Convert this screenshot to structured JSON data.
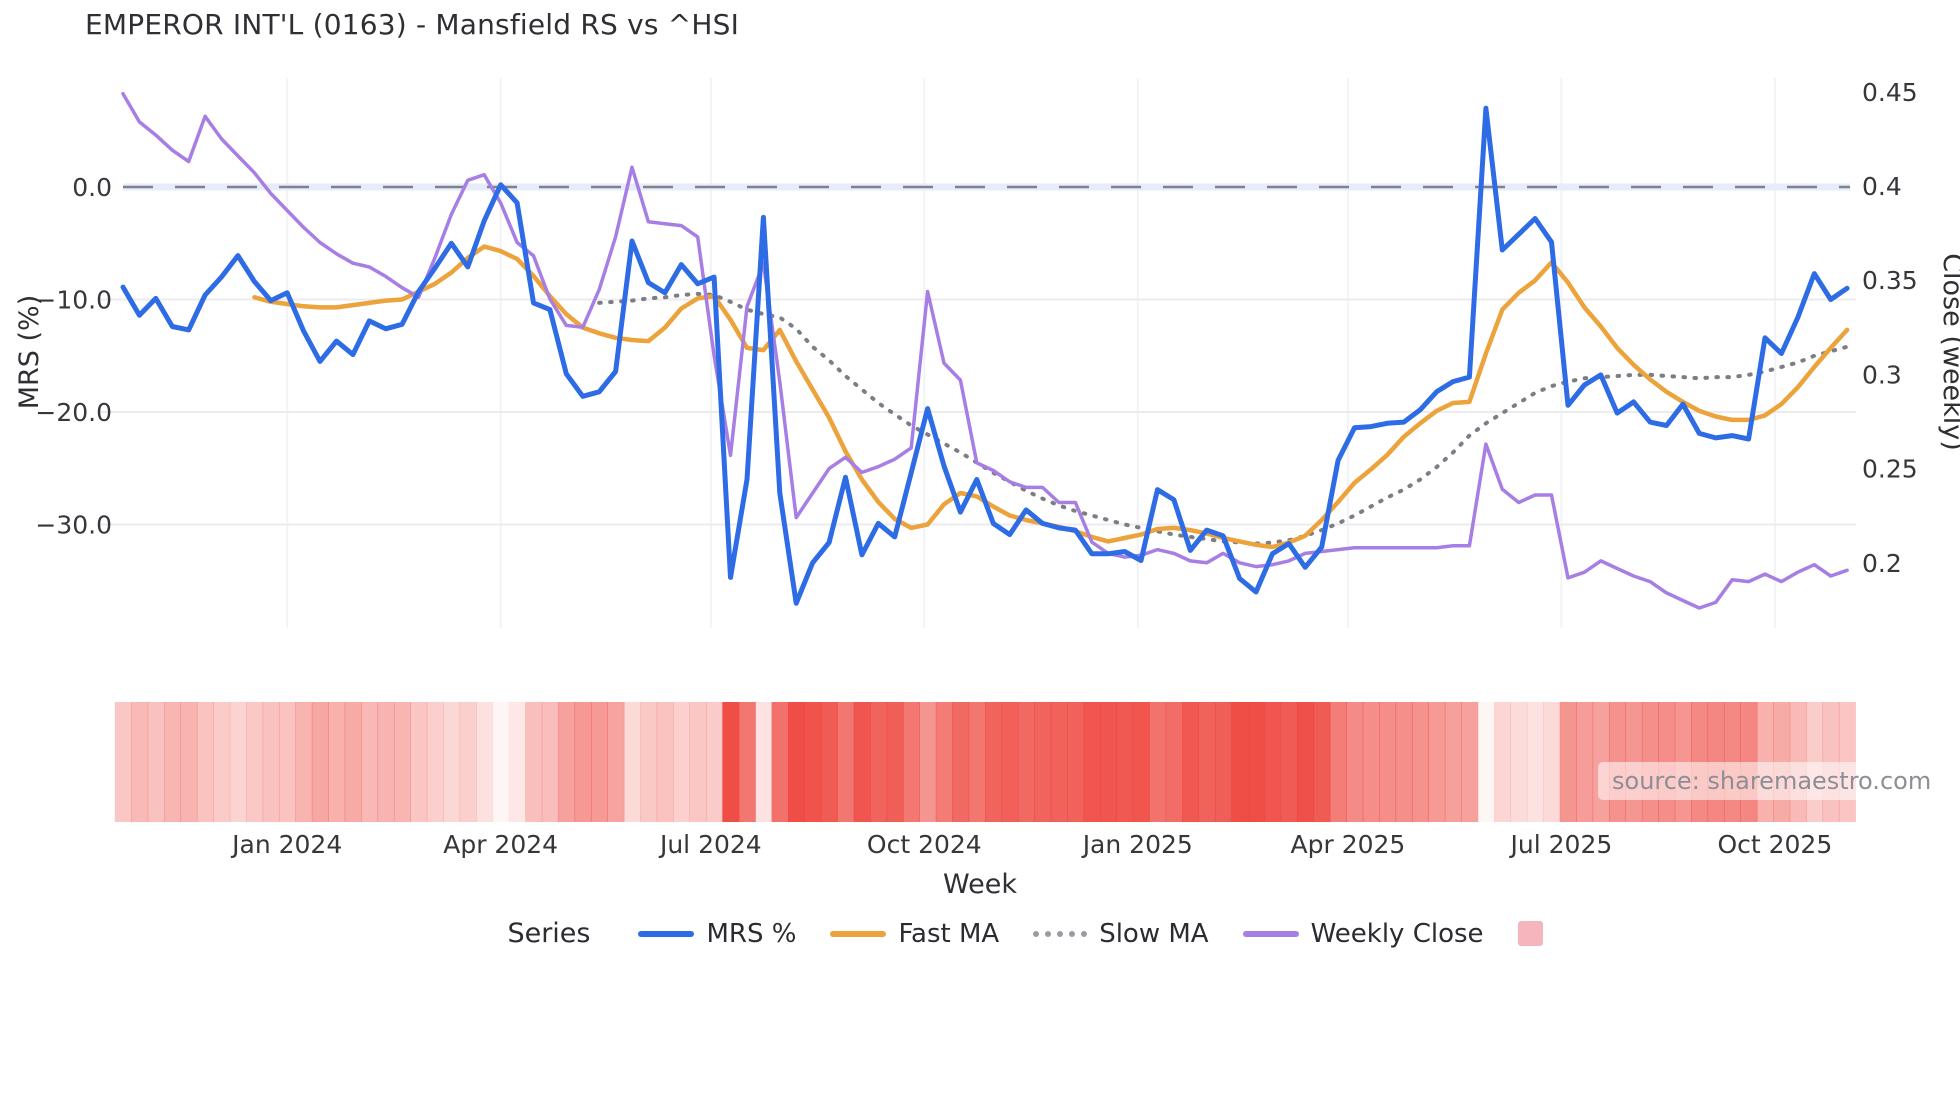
{
  "title": "EMPEROR INT'L (0163) - Mansfield RS vs ^HSI",
  "source_label": "source: sharemaestro.com",
  "axes": {
    "left": {
      "title": "MRS (%)",
      "ticks": [
        {
          "label": "0.0",
          "v": 0
        },
        {
          "label": "−10.0",
          "v": -10
        },
        {
          "label": "−20.0",
          "v": -20
        },
        {
          "label": "−30.0",
          "v": -30
        }
      ]
    },
    "right": {
      "title": "Close (weekly)",
      "ticks": [
        {
          "label": "0.45",
          "v": 0.45
        },
        {
          "label": "0.4",
          "v": 0.4
        },
        {
          "label": "0.35",
          "v": 0.35
        },
        {
          "label": "0.3",
          "v": 0.3
        },
        {
          "label": "0.25",
          "v": 0.25
        },
        {
          "label": "0.2",
          "v": 0.2
        }
      ]
    },
    "x": {
      "title": "Week",
      "ticks": [
        {
          "label": "Jan 2024",
          "week": 10.0
        },
        {
          "label": "Apr 2024",
          "week": 23.0
        },
        {
          "label": "Jul 2024",
          "week": 35.8
        },
        {
          "label": "Oct 2024",
          "week": 48.8
        },
        {
          "label": "Jan 2025",
          "week": 61.8
        },
        {
          "label": "Apr 2025",
          "week": 74.6
        },
        {
          "label": "Jul 2025",
          "week": 87.6
        },
        {
          "label": "Oct 2025",
          "week": 100.6
        }
      ]
    }
  },
  "legend": {
    "title": "Series",
    "items": [
      {
        "label": "MRS %",
        "swatch": "line",
        "color": "#2e6ce6"
      },
      {
        "label": "Fast MA",
        "swatch": "line",
        "color": "#eca33c"
      },
      {
        "label": "Slow MA",
        "swatch": "dotted",
        "color": "#989ba3"
      },
      {
        "label": "Weekly Close",
        "swatch": "line",
        "color": "#a77ee3"
      },
      {
        "label": "",
        "swatch": "square",
        "color": "#f4b6bc"
      }
    ]
  },
  "colors": {
    "grid": "#ebebf0",
    "grid_vertical": "#f3f3f7",
    "zero_dash": "#7d828e",
    "zero_band": "#e6ecf9",
    "text_dark": "#2f2f34",
    "text_tick": "#36363b",
    "heat_red": "#ee443c",
    "legend_pink": "#f4b6bc"
  },
  "chart_data": {
    "type": "line",
    "title": "EMPEROR INT'L (0163) - Mansfield RS vs ^HSI",
    "xlabel": "Week",
    "ylabel_left": "MRS (%)",
    "ylabel_right": "Close (weekly)",
    "x_unit": "weekly index, late Oct 2023 to Nov 2025",
    "n_weeks": 106,
    "zero_reference_line": 0,
    "left_ylim": [
      -38.9,
      10.0
    ],
    "right_ylim": [
      0.167,
      0.459
    ],
    "grid": "horizontal",
    "legend_position": "bottom",
    "series": [
      {
        "name": "MRS %",
        "axis": "left",
        "color": "#2e6ce6",
        "style": "solid",
        "width": 5,
        "values": [
          -8.9,
          -11.4,
          -9.9,
          -12.4,
          -12.7,
          -9.6,
          -8.0,
          -6.1,
          -8.4,
          -10.1,
          -9.4,
          -12.8,
          -15.5,
          -13.7,
          -14.9,
          -11.9,
          -12.6,
          -12.2,
          -9.3,
          -7.2,
          -5.0,
          -7.1,
          -3.0,
          0.2,
          -1.4,
          -10.3,
          -10.9,
          -16.6,
          -18.6,
          -18.2,
          -16.4,
          -4.8,
          -8.5,
          -9.4,
          -6.9,
          -8.6,
          -8.0,
          -34.7,
          -26.0,
          -2.7,
          -27.2,
          -37.0,
          -33.4,
          -31.6,
          -25.8,
          -32.7,
          -29.9,
          -31.1,
          -25.4,
          -19.7,
          -24.8,
          -28.9,
          -26.0,
          -29.9,
          -30.9,
          -28.7,
          -29.9,
          -30.3,
          -30.5,
          -32.6,
          -32.6,
          -32.4,
          -33.2,
          -26.9,
          -27.8,
          -32.3,
          -30.5,
          -31.0,
          -34.8,
          -36.0,
          -32.6,
          -31.7,
          -33.8,
          -32.0,
          -24.3,
          -21.4,
          -21.3,
          -21.0,
          -20.9,
          -19.8,
          -18.2,
          -17.3,
          -16.9,
          7.0,
          -5.6,
          -4.2,
          -2.8,
          -4.9,
          -19.4,
          -17.6,
          -16.7,
          -20.1,
          -19.1,
          -20.9,
          -21.2,
          -19.3,
          -21.9,
          -22.3,
          -22.1,
          -22.4,
          -13.4,
          -14.8,
          -11.6,
          -7.7,
          -10.0,
          -9.0
        ]
      },
      {
        "name": "Fast MA",
        "axis": "left",
        "color": "#eca33c",
        "style": "solid",
        "width": 4.5,
        "values": [
          null,
          null,
          null,
          null,
          null,
          null,
          null,
          null,
          -9.8,
          -10.2,
          -10.4,
          -10.6,
          -10.7,
          -10.7,
          -10.5,
          -10.3,
          -10.1,
          -10.0,
          -9.3,
          -8.6,
          -7.6,
          -6.3,
          -5.3,
          -5.7,
          -6.4,
          -7.9,
          -9.7,
          -11.3,
          -12.5,
          -13.0,
          -13.4,
          -13.6,
          -13.7,
          -12.5,
          -10.8,
          -9.9,
          -9.7,
          -11.8,
          -14.3,
          -14.5,
          -12.7,
          -15.5,
          -18.0,
          -20.5,
          -23.5,
          -26.0,
          -28.0,
          -29.5,
          -30.3,
          -30.0,
          -28.2,
          -27.2,
          -27.5,
          -28.4,
          -29.2,
          -29.6,
          -29.9,
          -30.2,
          -30.6,
          -31.1,
          -31.5,
          -31.2,
          -30.9,
          -30.4,
          -30.3,
          -30.5,
          -30.8,
          -31.2,
          -31.5,
          -31.8,
          -32.0,
          -31.6,
          -31.0,
          -29.6,
          -28.0,
          -26.3,
          -25.1,
          -23.8,
          -22.2,
          -21.0,
          -19.9,
          -19.2,
          -19.1,
          -14.8,
          -10.9,
          -9.4,
          -8.3,
          -6.7,
          -8.5,
          -10.7,
          -12.4,
          -14.3,
          -15.8,
          -17.1,
          -18.2,
          -19.1,
          -19.9,
          -20.4,
          -20.7,
          -20.7,
          -20.3,
          -19.3,
          -17.8,
          -16.0,
          -14.3,
          -12.7
        ]
      },
      {
        "name": "Slow MA",
        "axis": "left",
        "color": "#7d7d85",
        "style": "dotted",
        "width": 4,
        "values": [
          null,
          null,
          null,
          null,
          null,
          null,
          null,
          null,
          null,
          null,
          null,
          null,
          null,
          null,
          null,
          null,
          null,
          null,
          null,
          null,
          null,
          null,
          null,
          null,
          null,
          null,
          null,
          null,
          null,
          -10.3,
          -10.2,
          -10.1,
          -9.9,
          -9.8,
          -9.6,
          -9.5,
          -9.6,
          -10.2,
          -10.9,
          -11.3,
          -11.6,
          -12.6,
          -14.2,
          -15.4,
          -16.8,
          -18.0,
          -19.2,
          -20.2,
          -21.2,
          -22.0,
          -22.8,
          -23.6,
          -24.5,
          -25.4,
          -26.2,
          -27.0,
          -27.7,
          -28.3,
          -28.8,
          -29.2,
          -29.6,
          -30.0,
          -30.3,
          -30.6,
          -30.9,
          -31.1,
          -31.3,
          -31.5,
          -31.6,
          -31.7,
          -31.6,
          -31.4,
          -31.0,
          -30.5,
          -29.9,
          -29.2,
          -28.4,
          -27.6,
          -26.9,
          -26.0,
          -24.9,
          -23.6,
          -22.1,
          -21.0,
          -20.1,
          -19.2,
          -18.3,
          -17.7,
          -17.3,
          -17.0,
          -16.9,
          -16.8,
          -16.7,
          -16.7,
          -16.8,
          -16.9,
          -17.0,
          -16.9,
          -16.9,
          -16.7,
          -16.4,
          -16.0,
          -15.6,
          -15.0,
          -14.6,
          -14.2
        ]
      },
      {
        "name": "Weekly Close",
        "axis": "right",
        "color": "#a77ee3",
        "style": "solid",
        "width": 3.5,
        "values": [
          0.449,
          0.434,
          0.427,
          0.419,
          0.413,
          0.437,
          0.425,
          0.416,
          0.407,
          0.396,
          0.387,
          0.378,
          0.37,
          0.364,
          0.359,
          0.357,
          0.352,
          0.346,
          0.341,
          0.362,
          0.385,
          0.403,
          0.406,
          0.391,
          0.37,
          0.363,
          0.34,
          0.326,
          0.325,
          0.345,
          0.373,
          0.41,
          0.381,
          0.38,
          0.379,
          0.373,
          0.31,
          0.257,
          0.336,
          0.359,
          0.296,
          0.224,
          0.237,
          0.25,
          0.256,
          0.248,
          0.251,
          0.255,
          0.261,
          0.344,
          0.306,
          0.297,
          0.253,
          0.249,
          0.243,
          0.24,
          0.24,
          0.232,
          0.232,
          0.211,
          0.205,
          0.203,
          0.204,
          0.207,
          0.205,
          0.201,
          0.2,
          0.205,
          0.2,
          0.198,
          0.199,
          0.201,
          0.205,
          0.206,
          0.207,
          0.208,
          0.208,
          0.208,
          0.208,
          0.208,
          0.208,
          0.209,
          0.209,
          0.263,
          0.239,
          0.232,
          0.236,
          0.236,
          0.192,
          0.195,
          0.201,
          0.197,
          0.193,
          0.19,
          0.184,
          0.18,
          0.176,
          0.179,
          0.191,
          0.19,
          0.194,
          0.19,
          0.195,
          0.199,
          0.193,
          0.196
        ]
      }
    ],
    "heat_strip": {
      "name": "RS heat strip",
      "color": "#ee443c",
      "alphas": [
        0.3,
        0.37,
        0.33,
        0.39,
        0.4,
        0.32,
        0.28,
        0.23,
        0.29,
        0.33,
        0.32,
        0.4,
        0.47,
        0.42,
        0.45,
        0.38,
        0.4,
        0.39,
        0.31,
        0.26,
        0.21,
        0.26,
        0.16,
        0.05,
        0.12,
        0.34,
        0.35,
        0.5,
        0.55,
        0.54,
        0.49,
        0.2,
        0.29,
        0.32,
        0.25,
        0.3,
        0.28,
        0.95,
        0.73,
        0.15,
        0.76,
        0.95,
        0.92,
        0.87,
        0.73,
        0.9,
        0.83,
        0.86,
        0.72,
        0.57,
        0.7,
        0.8,
        0.73,
        0.83,
        0.85,
        0.8,
        0.83,
        0.84,
        0.84,
        0.9,
        0.9,
        0.89,
        0.91,
        0.75,
        0.78,
        0.89,
        0.84,
        0.86,
        0.95,
        0.95,
        0.9,
        0.87,
        0.93,
        0.88,
        0.69,
        0.62,
        0.61,
        0.61,
        0.6,
        0.58,
        0.54,
        0.51,
        0.5,
        0.05,
        0.22,
        0.19,
        0.15,
        0.2,
        0.57,
        0.52,
        0.5,
        0.58,
        0.56,
        0.6,
        0.61,
        0.56,
        0.63,
        0.64,
        0.63,
        0.64,
        0.42,
        0.45,
        0.37,
        0.27,
        0.33,
        0.31
      ]
    }
  }
}
